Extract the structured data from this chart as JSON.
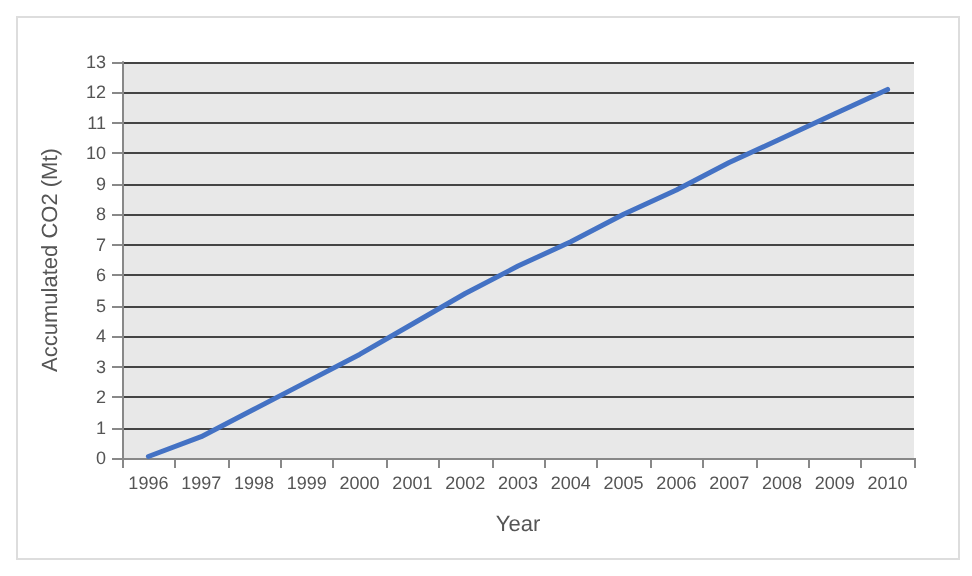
{
  "chart_data": {
    "type": "line",
    "xlabel": "Year",
    "ylabel": "Accumulated CO2 (Mt)",
    "categories": [
      "1996",
      "1997",
      "1998",
      "1999",
      "2000",
      "2001",
      "2002",
      "2003",
      "2004",
      "2005",
      "2006",
      "2007",
      "2008",
      "2009",
      "2010"
    ],
    "series": [
      {
        "color": "#4472c4",
        "values": [
          0.05,
          0.7,
          1.6,
          2.5,
          3.4,
          4.4,
          5.4,
          6.3,
          7.1,
          8.0,
          8.8,
          9.7,
          10.5,
          11.3,
          12.1
        ]
      }
    ],
    "ylim": [
      0,
      13
    ],
    "yticks": [
      0,
      1,
      2,
      3,
      4,
      5,
      6,
      7,
      8,
      9,
      10,
      11,
      12,
      13
    ],
    "grid": "y",
    "marker": "none"
  }
}
